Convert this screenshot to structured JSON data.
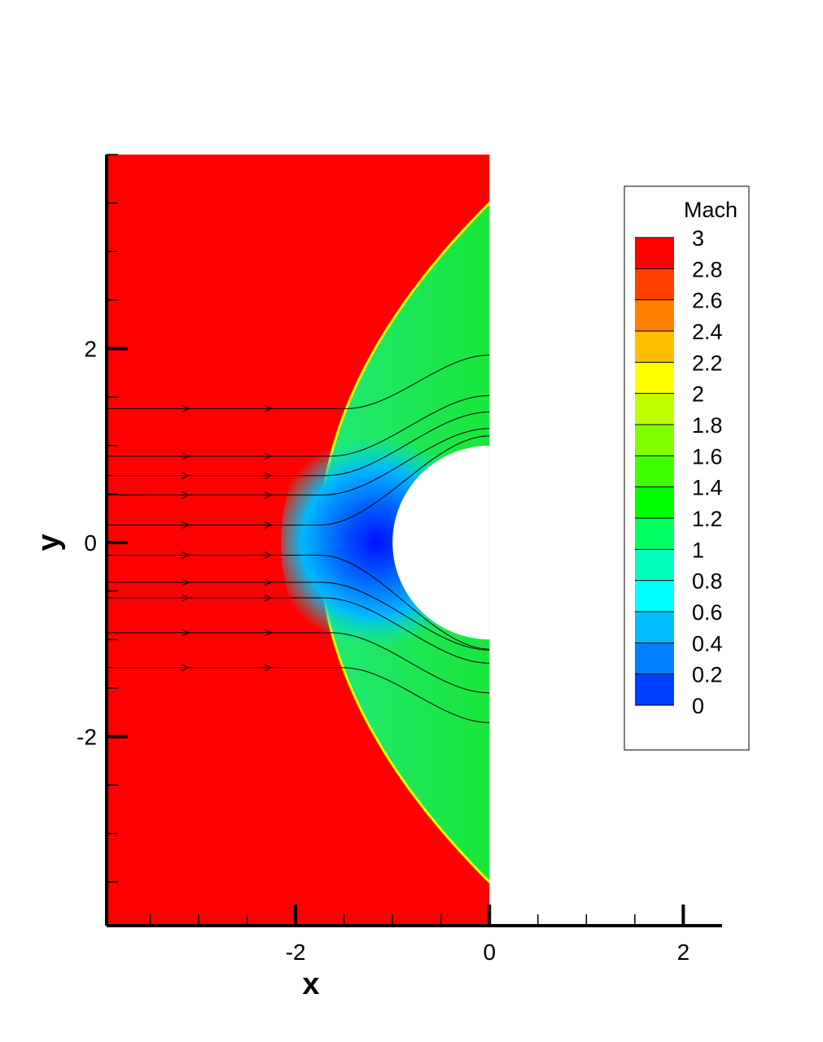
{
  "chart_data": {
    "type": "heatmap",
    "variable": "Mach",
    "xlabel": "x",
    "ylabel": "y",
    "xlim": [
      -3.95,
      2.4
    ],
    "ylim": [
      -3.95,
      4.0
    ],
    "x_ticks": [
      -2,
      0,
      2
    ],
    "x_tick_labels": [
      "-2",
      "0",
      "2"
    ],
    "y_ticks": [
      -2,
      0,
      2
    ],
    "y_tick_labels": [
      "-2",
      "0",
      "2"
    ],
    "domain": {
      "x": [
        -3.95,
        0
      ],
      "y": [
        -3.95,
        4.0
      ]
    },
    "cylinder": {
      "center": [
        0,
        0
      ],
      "radius": 1.0
    },
    "freestream_mach": 3,
    "shock_standoff_x": -1.75,
    "legend": {
      "title": "Mach",
      "position": "right",
      "levels": [
        3,
        2.8,
        2.6,
        2.4,
        2.2,
        2,
        1.8,
        1.6,
        1.4,
        1.2,
        1,
        0.8,
        0.6,
        0.4,
        0.2,
        0
      ],
      "labels": [
        "3",
        "2.8",
        "2.6",
        "2.4",
        "2.2",
        "2",
        "1.8",
        "1.6",
        "1.4",
        "1.2",
        "1",
        "0.8",
        "0.6",
        "0.4",
        "0.2",
        "0"
      ],
      "colors": [
        "#ff0000",
        "#ff4000",
        "#ff8000",
        "#ffbf00",
        "#ffff00",
        "#bfff00",
        "#80ff00",
        "#40ff00",
        "#00ff00",
        "#00ff60",
        "#00ffbf",
        "#00ffff",
        "#00bfff",
        "#0080ff",
        "#0040ff",
        "#0000ff"
      ]
    },
    "regions": {
      "freestream_color": "#ff0000",
      "shock_layer_color": "#1ee850",
      "subsonic_color": "#00c8ff",
      "stagnation_color": "#0018ff"
    },
    "streamline_seeds_y": [
      1.38,
      0.89,
      0.69,
      0.49,
      0.18,
      -0.13,
      -0.41,
      -0.57,
      -0.93,
      -1.29
    ]
  }
}
